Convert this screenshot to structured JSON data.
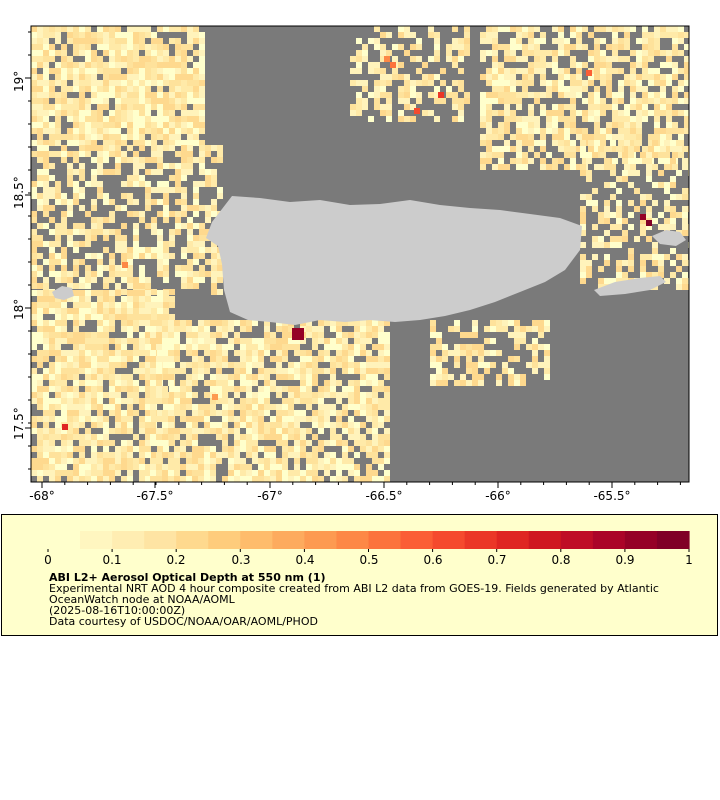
{
  "map": {
    "lat_ticks": [
      "19°",
      "18.5°",
      "18°",
      "17.5°"
    ],
    "lon_ticks": [
      "-68°",
      "-67.5°",
      "-67°",
      "-66.5°",
      "-66°",
      "-65.5°"
    ],
    "lat_range": [
      17.25,
      19.25
    ],
    "lon_range": [
      -68.05,
      -65.2
    ],
    "colors": {
      "water_nodata": "#7a7a7a",
      "land": "#cccccc",
      "frame": "#000000"
    }
  },
  "legend": {
    "colorbar_labels": [
      "0",
      "0.1",
      "0.2",
      "0.3",
      "0.4",
      "0.5",
      "0.6",
      "0.7",
      "0.8",
      "0.9",
      "1"
    ],
    "colorbar_range": [
      0,
      1
    ],
    "colorbar_colors": [
      "#ffffcc",
      "#fff6c0",
      "#ffedb2",
      "#fee4a3",
      "#fed98e",
      "#fecc7c",
      "#febc6c",
      "#fdab5e",
      "#fd9a51",
      "#fd8846",
      "#fc733c",
      "#fb5e35",
      "#f54a2e",
      "#eb3727",
      "#df2522",
      "#cf1720",
      "#bf0d26",
      "#ab0428",
      "#950126",
      "#800026"
    ],
    "title": "ABI L2+ Aerosol Optical Depth at 550 nm (1)",
    "line1": "Experimental NRT AOD 4 hour composite created from ABI L2 data from GOES-19. Fields generated by Atlantic OceanWatch node at NOAA/AOML",
    "line2": "(2025-08-16T10:00:00Z)",
    "line3": "Data courtesy of USDOC/NOAA/OAR/AOML/PHOD"
  }
}
